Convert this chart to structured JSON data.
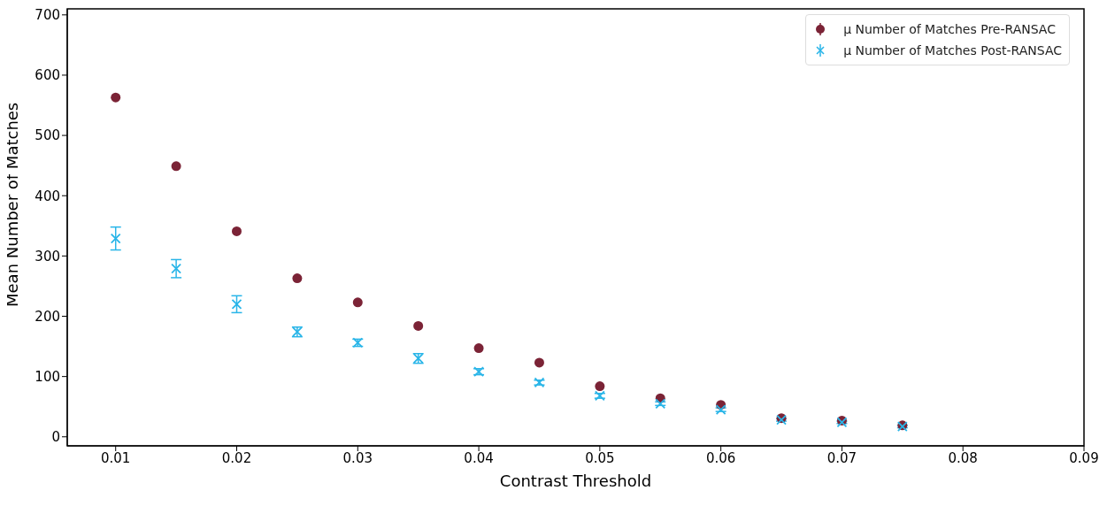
{
  "chart_data": {
    "type": "scatter",
    "xlabel": "Contrast Threshold",
    "ylabel": "Mean Number of Matches",
    "x": [
      0.01,
      0.015,
      0.02,
      0.025,
      0.03,
      0.035,
      0.04,
      0.045,
      0.05,
      0.055,
      0.06,
      0.065,
      0.07,
      0.075
    ],
    "series": [
      {
        "name": "μ Number of Matches Pre-RANSAC",
        "color": "#7b2336",
        "marker": "circle",
        "values": [
          563,
          449,
          341,
          263,
          223,
          184,
          147,
          123,
          84,
          64,
          53,
          31,
          27,
          19
        ],
        "errors": [
          3,
          3,
          3,
          3,
          3,
          3,
          3,
          3,
          3,
          3,
          3,
          3,
          3,
          3
        ]
      },
      {
        "name": "μ Number of Matches Post-RANSAC",
        "color": "#29b5e8",
        "marker": "cross",
        "values": [
          329,
          279,
          220,
          174,
          156,
          130,
          108,
          90,
          68,
          55,
          45,
          28,
          24,
          17
        ],
        "errors": [
          19,
          15,
          14,
          8,
          6,
          8,
          5,
          4,
          4,
          3,
          3,
          2,
          2,
          2
        ]
      }
    ],
    "xlim": [
      0.006,
      0.09
    ],
    "xticks": [
      0.01,
      0.02,
      0.03,
      0.04,
      0.05,
      0.06,
      0.07,
      0.08,
      0.09
    ],
    "ylim": [
      -15,
      710
    ],
    "yticks": [
      0,
      100,
      200,
      300,
      400,
      500,
      600,
      700
    ],
    "grid": false,
    "legend": "top right"
  }
}
